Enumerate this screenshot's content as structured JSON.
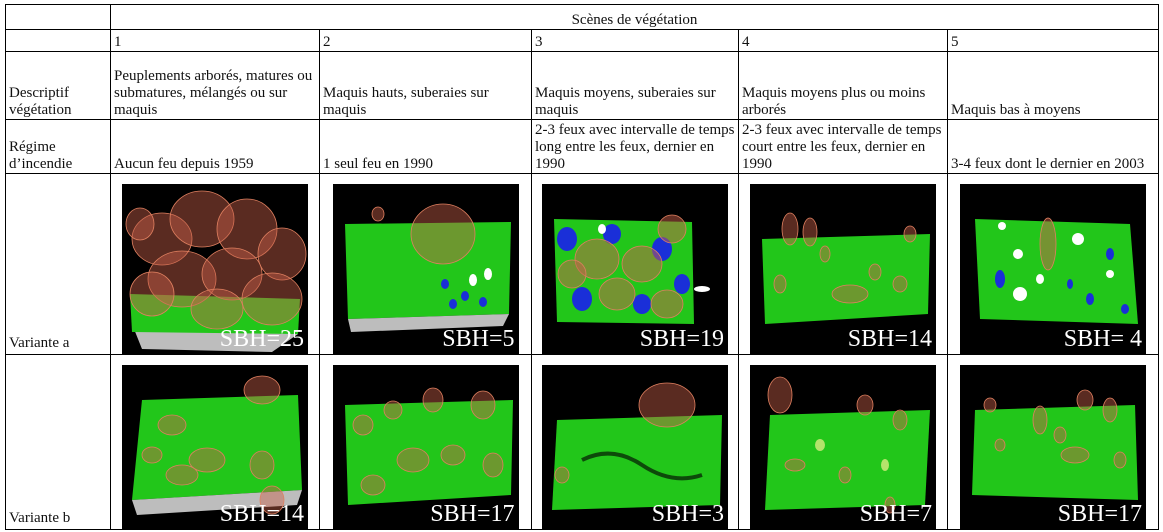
{
  "header": {
    "title": "Scènes de végétation",
    "numbers": [
      "1",
      "2",
      "3",
      "4",
      "5"
    ]
  },
  "rows": {
    "descriptif_label": "Descriptif végétation",
    "regime_label": "Régime d’incendie",
    "variante_a_label": "Variante a",
    "variante_b_label": "Variante b"
  },
  "scenes": [
    {
      "descriptif": "Peuplements arborés, matures ou submatures, mélangés ou sur maquis",
      "regime": "Aucun feu depuis 1959",
      "variante_a": "SBH=25",
      "variante_b": "SBH=14"
    },
    {
      "descriptif": "Maquis hauts, suberaies sur maquis",
      "regime": "1 seul feu en 1990",
      "variante_a": "SBH=5",
      "variante_b": "SBH=17"
    },
    {
      "descriptif": "Maquis moyens, suberaies sur maquis",
      "regime": "2-3 feux avec intervalle de temps long entre les feux, dernier en 1990",
      "variante_a": "SBH=19",
      "variante_b": "SBH=3"
    },
    {
      "descriptif": "Maquis moyens plus ou moins arborés",
      "regime": "2-3 feux avec intervalle de temps court entre les feux, dernier en 1990",
      "variante_a": "SBH=14",
      "variante_b": "SBH=7"
    },
    {
      "descriptif": "Maquis bas à moyens",
      "regime": "3-4 feux dont le dernier en 2003",
      "variante_a": "SBH= 4",
      "variante_b": "SBH=17"
    }
  ],
  "colors": {
    "terrain": "#22c61a",
    "crown": "#c8604a",
    "shrub_blue": "#1a2fd8",
    "shrub_white": "#ffffff",
    "background": "#000000"
  }
}
